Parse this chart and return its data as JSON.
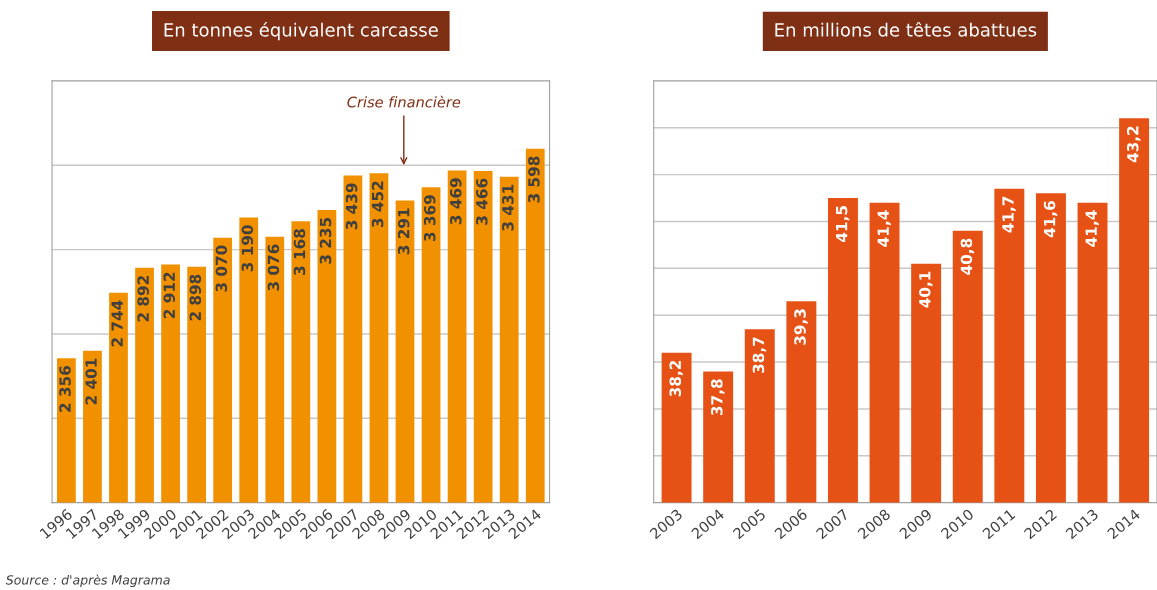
{
  "chart_data": [
    {
      "type": "bar",
      "title": "En tonnes équivalent carcasse",
      "categories": [
        "1996",
        "1997",
        "1998",
        "1999",
        "2000",
        "2001",
        "2002",
        "2003",
        "2004",
        "2005",
        "2006",
        "2007",
        "2008",
        "2009",
        "2010",
        "2011",
        "2012",
        "2013",
        "2014"
      ],
      "values": [
        2356,
        2401,
        2744,
        2892,
        2912,
        2898,
        3070,
        3190,
        3076,
        3168,
        3235,
        3439,
        3452,
        3291,
        3369,
        3469,
        3466,
        3431,
        3598
      ],
      "value_labels": [
        "2 356",
        "2 401",
        "2 744",
        "2 892",
        "2 912",
        "2 898",
        "3 070",
        "3 190",
        "3 076",
        "3 168",
        "3 235",
        "3 439",
        "3 452",
        "3 291",
        "3 369",
        "3 469",
        "3 466",
        "3 431",
        "3 598"
      ],
      "color": "#f29100",
      "ylim": [
        1500,
        4000
      ],
      "yticks": [
        {
          "value": 2000,
          "label": null
        },
        {
          "value": 2500,
          "label": null
        },
        {
          "value": 3000,
          "label": null
        },
        {
          "value": 3500,
          "label": null
        }
      ],
      "tick_labels": "x",
      "grid": "y",
      "annotations": [
        "Crise financière",
        "Source : d'après Magrama"
      ]
    },
    {
      "type": "bar",
      "title": "En millions de têtes abattues",
      "categories": [
        "2003",
        "2004",
        "2005",
        "2006",
        "2007",
        "2008",
        "2009",
        "2010",
        "2011",
        "2012",
        "2013",
        "2014"
      ],
      "values": [
        38.2,
        37.8,
        38.7,
        39.3,
        41.5,
        41.4,
        40.1,
        40.8,
        41.7,
        41.6,
        41.4,
        43.2
      ],
      "value_labels": [
        "38,2",
        "37,8",
        "38,7",
        "39,3",
        "41,5",
        "41,4",
        "40,1",
        "40,8",
        "41,7",
        "41,6",
        "41,4",
        "43,2"
      ],
      "color": "#e65215",
      "ylim": [
        35,
        44
      ],
      "yticks": [
        {
          "value": 36,
          "label": null
        },
        {
          "value": 37,
          "label": null
        },
        {
          "value": 38,
          "label": null
        },
        {
          "value": 39,
          "label": null
        },
        {
          "value": 40,
          "label": null
        },
        {
          "value": 41,
          "label": null
        },
        {
          "value": 42,
          "label": null
        },
        {
          "value": 43,
          "label": null
        }
      ],
      "tick_labels": "x",
      "grid": "y"
    }
  ]
}
